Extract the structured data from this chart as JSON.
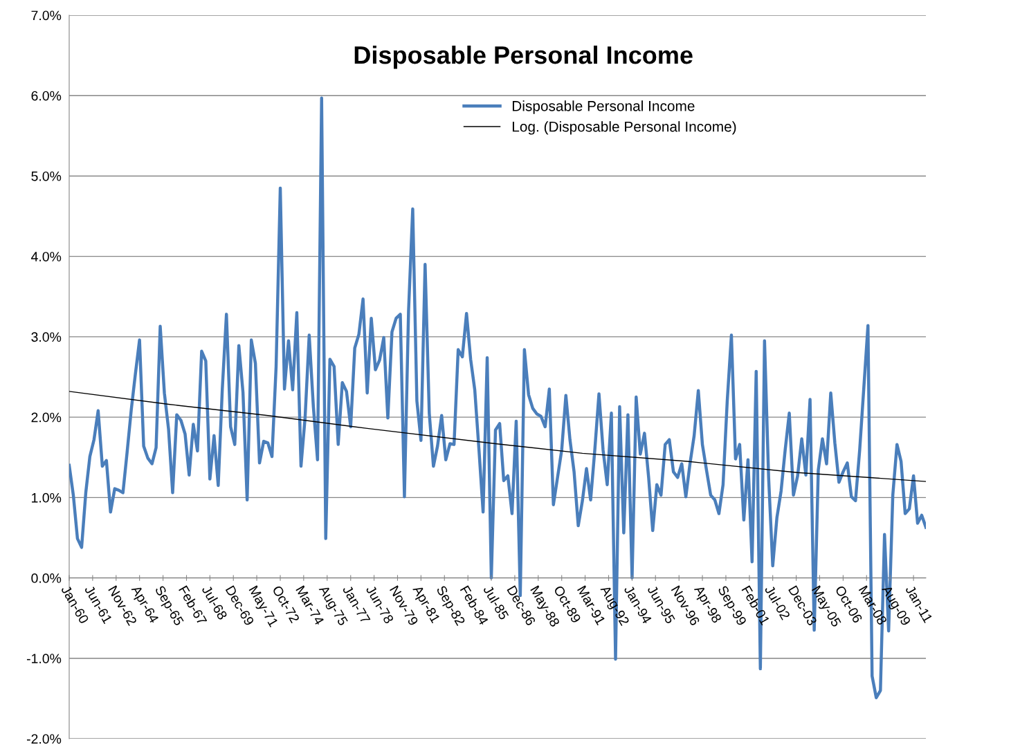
{
  "chart_data": {
    "type": "line",
    "title": "Disposable Personal Income",
    "x": [
      "1960-01",
      "1960-04",
      "1960-07",
      "1960-10",
      "1961-01",
      "1961-04",
      "1961-07",
      "1961-10",
      "1962-01",
      "1962-04",
      "1962-07",
      "1962-10",
      "1963-01",
      "1963-04",
      "1963-07",
      "1963-10",
      "1964-01",
      "1964-04",
      "1964-07",
      "1964-10",
      "1965-01",
      "1965-04",
      "1965-07",
      "1965-10",
      "1966-01",
      "1966-04",
      "1966-07",
      "1966-10",
      "1967-01",
      "1967-04",
      "1967-07",
      "1967-10",
      "1968-01",
      "1968-04",
      "1968-07",
      "1968-10",
      "1969-01",
      "1969-04",
      "1969-07",
      "1969-10",
      "1970-01",
      "1970-04",
      "1970-07",
      "1970-10",
      "1971-01",
      "1971-04",
      "1971-07",
      "1971-10",
      "1972-01",
      "1972-04",
      "1972-07",
      "1972-10",
      "1973-01",
      "1973-04",
      "1973-07",
      "1973-10",
      "1974-01",
      "1974-04",
      "1974-07",
      "1974-10",
      "1975-01",
      "1975-04",
      "1975-07",
      "1975-10",
      "1976-01",
      "1976-04",
      "1976-07",
      "1976-10",
      "1977-01",
      "1977-04",
      "1977-07",
      "1977-10",
      "1978-01",
      "1978-04",
      "1978-07",
      "1978-10",
      "1979-01",
      "1979-04",
      "1979-07",
      "1979-10",
      "1980-01",
      "1980-04",
      "1980-07",
      "1980-10",
      "1981-01",
      "1981-04",
      "1981-07",
      "1981-10",
      "1982-01",
      "1982-04",
      "1982-07",
      "1982-10",
      "1983-01",
      "1983-04",
      "1983-07",
      "1983-10",
      "1984-01",
      "1984-04",
      "1984-07",
      "1984-10",
      "1985-01",
      "1985-04",
      "1985-07",
      "1985-10",
      "1986-01",
      "1986-04",
      "1986-07",
      "1986-10",
      "1987-01",
      "1987-04",
      "1987-07",
      "1987-10",
      "1988-01",
      "1988-04",
      "1988-07",
      "1988-10",
      "1989-01",
      "1989-04",
      "1989-07",
      "1989-10",
      "1990-01",
      "1990-04",
      "1990-07",
      "1990-10",
      "1991-01",
      "1991-04",
      "1991-07",
      "1991-10",
      "1992-01",
      "1992-04",
      "1992-07",
      "1992-10",
      "1993-01",
      "1993-04",
      "1993-07",
      "1993-10",
      "1994-01",
      "1994-04",
      "1994-07",
      "1994-10",
      "1995-01",
      "1995-04",
      "1995-07",
      "1995-10",
      "1996-01",
      "1996-04",
      "1996-07",
      "1996-10",
      "1997-01",
      "1997-04",
      "1997-07",
      "1997-10",
      "1998-01",
      "1998-04",
      "1998-07",
      "1998-10",
      "1999-01",
      "1999-04",
      "1999-07",
      "1999-10",
      "2000-01",
      "2000-04",
      "2000-07",
      "2000-10",
      "2001-01",
      "2001-04",
      "2001-07",
      "2001-10",
      "2002-01",
      "2002-04",
      "2002-07",
      "2002-10",
      "2003-01",
      "2003-04",
      "2003-07",
      "2003-10",
      "2004-01",
      "2004-04",
      "2004-07",
      "2004-10",
      "2005-01",
      "2005-04",
      "2005-07",
      "2005-10",
      "2006-01",
      "2006-04",
      "2006-07",
      "2006-10",
      "2007-01",
      "2007-04",
      "2007-07",
      "2007-10",
      "2008-01",
      "2008-04",
      "2008-07",
      "2008-10",
      "2009-01",
      "2009-04",
      "2009-07",
      "2009-10",
      "2010-01",
      "2010-04",
      "2010-07",
      "2010-10",
      "2011-01",
      "2011-04",
      "2011-07",
      "2011-10"
    ],
    "series": [
      {
        "name": "Disposable Personal Income",
        "color": "#4a7ebb",
        "values": [
          1.4,
          1.03,
          0.49,
          0.38,
          1.06,
          1.51,
          1.72,
          2.08,
          1.39,
          1.46,
          0.82,
          1.11,
          1.09,
          1.06,
          1.56,
          2.09,
          2.54,
          2.96,
          1.64,
          1.49,
          1.42,
          1.62,
          3.13,
          2.3,
          1.85,
          1.06,
          2.03,
          1.96,
          1.79,
          1.28,
          1.91,
          1.58,
          2.82,
          2.7,
          1.23,
          1.77,
          1.15,
          2.35,
          3.28,
          1.88,
          1.66,
          2.89,
          2.31,
          0.97,
          2.96,
          2.67,
          1.43,
          1.7,
          1.68,
          1.51,
          2.63,
          4.85,
          2.35,
          2.95,
          2.34,
          3.3,
          1.39,
          1.99,
          3.02,
          2.13,
          1.47,
          5.97,
          0.49,
          2.72,
          2.63,
          1.66,
          2.43,
          2.32,
          1.88,
          2.86,
          3.03,
          3.47,
          2.3,
          3.23,
          2.59,
          2.71,
          2.99,
          1.99,
          3.06,
          3.23,
          3.28,
          1.01,
          3.32,
          4.59,
          2.2,
          1.71,
          3.9,
          2.05,
          1.39,
          1.64,
          2.02,
          1.47,
          1.67,
          1.66,
          2.84,
          2.75,
          3.29,
          2.72,
          2.34,
          1.6,
          0.82,
          2.74,
          0.0,
          1.84,
          1.92,
          1.21,
          1.27,
          0.8,
          1.95,
          -0.22,
          2.84,
          2.28,
          2.11,
          2.04,
          2.01,
          1.88,
          2.35,
          0.91,
          1.25,
          1.59,
          2.27,
          1.72,
          1.32,
          0.65,
          0.96,
          1.36,
          0.97,
          1.59,
          2.29,
          1.59,
          1.16,
          2.05,
          -1.01,
          2.13,
          0.56,
          2.03,
          0.0,
          2.25,
          1.54,
          1.8,
          1.25,
          0.59,
          1.16,
          1.03,
          1.66,
          1.72,
          1.32,
          1.25,
          1.42,
          1.01,
          1.42,
          1.77,
          2.33,
          1.66,
          1.34,
          1.03,
          0.97,
          0.8,
          1.16,
          2.2,
          3.02,
          1.48,
          1.66,
          0.72,
          1.47,
          0.2,
          2.57,
          -1.13,
          2.95,
          1.25,
          0.15,
          0.75,
          1.08,
          1.59,
          2.05,
          1.03,
          1.27,
          1.73,
          1.28,
          2.22,
          -0.65,
          1.34,
          1.73,
          1.42,
          2.3,
          1.68,
          1.19,
          1.32,
          1.43,
          1.01,
          0.96,
          1.59,
          2.37,
          3.14,
          -1.22,
          -1.49,
          -1.4,
          0.54,
          -0.66,
          1.03,
          1.66,
          1.45,
          0.8,
          0.86,
          1.27,
          0.68,
          0.78,
          0.63
        ]
      },
      {
        "name": "Log. (Disposable Personal Income)",
        "color": "#000000",
        "x": [
          "1960-01",
          "1966-01",
          "1972-01",
          "1978-01",
          "1985-10",
          "1991-01",
          "1997-05",
          "2004-01",
          "2011-10"
        ],
        "values": [
          2.32,
          2.16,
          2.02,
          1.86,
          1.67,
          1.55,
          1.45,
          1.31,
          1.2
        ]
      }
    ],
    "ylim": [
      -2,
      7
    ],
    "yticks": [
      {
        "value": -2,
        "label": "-2.0%"
      },
      {
        "value": -1,
        "label": "-1.0%"
      },
      {
        "value": 0,
        "label": "0.0%"
      },
      {
        "value": 1,
        "label": "1.0%"
      },
      {
        "value": 2,
        "label": "2.0%"
      },
      {
        "value": 3,
        "label": "3.0%"
      },
      {
        "value": 4,
        "label": "4.0%"
      },
      {
        "value": 5,
        "label": "5.0%"
      },
      {
        "value": 6,
        "label": "6.0%"
      },
      {
        "value": 7,
        "label": "7.0%"
      }
    ],
    "xlim": [
      "1960-01",
      "2011-10"
    ],
    "xticks": [
      {
        "value": "1960-01",
        "label": "Jan-60"
      },
      {
        "value": "1961-06",
        "label": "Jun-61"
      },
      {
        "value": "1962-11",
        "label": "Nov-62"
      },
      {
        "value": "1964-04",
        "label": "Apr-64"
      },
      {
        "value": "1965-09",
        "label": "Sep-65"
      },
      {
        "value": "1967-02",
        "label": "Feb-67"
      },
      {
        "value": "1968-07",
        "label": "Jul-68"
      },
      {
        "value": "1969-12",
        "label": "Dec-69"
      },
      {
        "value": "1971-05",
        "label": "May-71"
      },
      {
        "value": "1972-10",
        "label": "Oct-72"
      },
      {
        "value": "1974-03",
        "label": "Mar-74"
      },
      {
        "value": "1975-08",
        "label": "Aug-75"
      },
      {
        "value": "1977-01",
        "label": "Jan-77"
      },
      {
        "value": "1978-06",
        "label": "Jun-78"
      },
      {
        "value": "1979-11",
        "label": "Nov-79"
      },
      {
        "value": "1981-04",
        "label": "Apr-81"
      },
      {
        "value": "1982-09",
        "label": "Sep-82"
      },
      {
        "value": "1984-02",
        "label": "Feb-84"
      },
      {
        "value": "1985-07",
        "label": "Jul-85"
      },
      {
        "value": "1986-12",
        "label": "Dec-86"
      },
      {
        "value": "1988-05",
        "label": "May-88"
      },
      {
        "value": "1989-10",
        "label": "Oct-89"
      },
      {
        "value": "1991-03",
        "label": "Mar-91"
      },
      {
        "value": "1992-08",
        "label": "Aug-92"
      },
      {
        "value": "1994-01",
        "label": "Jan-94"
      },
      {
        "value": "1995-06",
        "label": "Jun-95"
      },
      {
        "value": "1996-11",
        "label": "Nov-96"
      },
      {
        "value": "1998-04",
        "label": "Apr-98"
      },
      {
        "value": "1999-09",
        "label": "Sep-99"
      },
      {
        "value": "2001-02",
        "label": "Feb-01"
      },
      {
        "value": "2002-07",
        "label": "Jul-02"
      },
      {
        "value": "2003-12",
        "label": "Dec-03"
      },
      {
        "value": "2005-05",
        "label": "May-05"
      },
      {
        "value": "2006-10",
        "label": "Oct-06"
      },
      {
        "value": "2008-03",
        "label": "Mar-08"
      },
      {
        "value": "2009-08",
        "label": "Aug-09"
      },
      {
        "value": "2011-01",
        "label": "Jan-11"
      }
    ],
    "grid": "y",
    "legend": "top",
    "marker": "none",
    "line_style": "solid"
  }
}
